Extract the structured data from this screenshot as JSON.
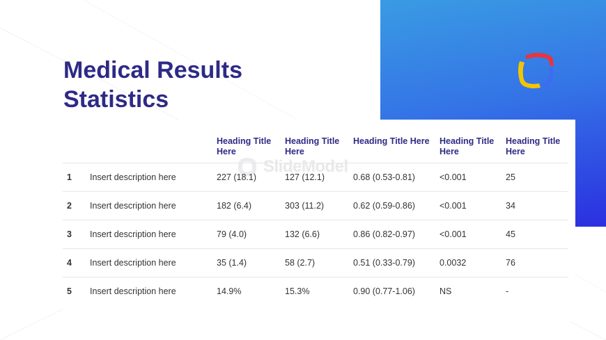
{
  "slide": {
    "title_lines": [
      "Medical Results",
      "Statistics"
    ],
    "watermark": "SlideModel",
    "colors": {
      "title": "#2e2a86",
      "panel_top": "#3a9be3",
      "panel_bottom": "#2b2fe0",
      "logo_red": "#e8343f",
      "logo_yellow": "#f5c400",
      "logo_blue": "#3d6cf0"
    },
    "logo_icon": "rounded-square-logo-icon"
  },
  "table": {
    "headers": [
      "",
      "",
      "Heading Title Here",
      "Heading Title Here",
      "Heading Title Here",
      "Heading Title Here",
      "Heading Title Here"
    ],
    "rows": [
      [
        "1",
        "Insert description here",
        "227 (18.1)",
        "127 (12.1)",
        "0.68 (0.53-0.81)",
        "<0.001",
        "25"
      ],
      [
        "2",
        "Insert description here",
        "182 (6.4)",
        "303 (11.2)",
        "0.62 (0.59-0.86)",
        "<0.001",
        "34"
      ],
      [
        "3",
        "Insert description here",
        "79 (4.0)",
        "132 (6.6)",
        "0.86 (0.82-0.97)",
        "<0.001",
        "45"
      ],
      [
        "4",
        "Insert description here",
        "35 (1.4)",
        "58 (2.7)",
        "0.51 (0.33-0.79)",
        "0.0032",
        "76"
      ],
      [
        "5",
        "Insert description here",
        "14.9%",
        "15.3%",
        "0.90 (0.77-1.06)",
        "NS",
        "-"
      ]
    ]
  }
}
